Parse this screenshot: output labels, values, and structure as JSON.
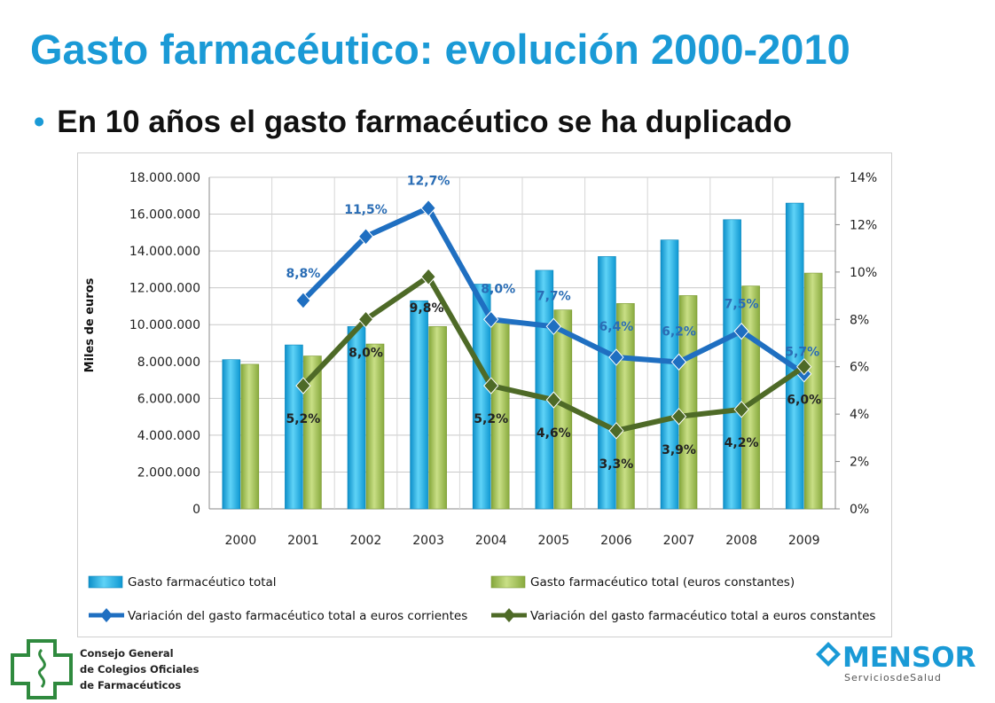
{
  "slide": {
    "title": "Gasto farmacéutico: evolución 2000-2010",
    "bullet": "•",
    "subtitle": "En 10 años el gasto farmacéutico se ha duplicado"
  },
  "logos": {
    "left": {
      "line1": "Consejo General",
      "line2": "de Colegios Oficiales",
      "line3": "de Farmacéuticos"
    },
    "right": {
      "name": "MENSOR",
      "tagline": "ServiciosdeSalud"
    }
  },
  "chart_data": {
    "type": "bar",
    "categories": [
      "2000",
      "2001",
      "2002",
      "2003",
      "2004",
      "2005",
      "2006",
      "2007",
      "2008",
      "2009"
    ],
    "ylabel": "Miles de euros",
    "ylim": [
      0,
      18000000
    ],
    "y_ticks": [
      "0",
      "2.000.000",
      "4.000.000",
      "6.000.000",
      "8.000.000",
      "10.000.000",
      "12.000.000",
      "14.000.000",
      "16.000.000",
      "18.000.000"
    ],
    "y2lim": [
      0,
      14
    ],
    "y2_ticks": [
      "0%",
      "2%",
      "4%",
      "6%",
      "8%",
      "10%",
      "12%",
      "14%"
    ],
    "grid": true,
    "legend_position": "bottom",
    "series": [
      {
        "name": "Gasto farmacéutico total",
        "kind": "bar",
        "color": "#1ab2e8",
        "values": [
          8100000,
          8900000,
          9900000,
          11300000,
          12200000,
          12950000,
          13700000,
          14600000,
          15700000,
          16600000
        ]
      },
      {
        "name": "Gasto farmacéutico total (euros constantes)",
        "kind": "bar",
        "color": "#9dbd4a",
        "values": [
          7850000,
          8300000,
          8950000,
          9900000,
          10200000,
          10800000,
          11150000,
          11580000,
          12100000,
          12800000
        ]
      },
      {
        "name": "Variación del gasto farmacéutico total a euros corrientes",
        "kind": "line",
        "color": "#1f6fc1",
        "values": [
          null,
          8.8,
          11.5,
          12.7,
          8.0,
          7.7,
          6.4,
          6.2,
          7.5,
          5.7
        ],
        "labels": [
          null,
          "8,8%",
          "11,5%",
          "12,7%",
          "8,0%",
          "7,7%",
          "6,4%",
          "6,2%",
          "7,5%",
          "5,7%"
        ]
      },
      {
        "name": "Variación del gasto farmacéutico total a euros constantes",
        "kind": "line",
        "color": "#4e6a27",
        "values": [
          null,
          5.2,
          8.0,
          9.8,
          5.2,
          4.6,
          3.3,
          3.9,
          4.2,
          6.0
        ],
        "labels": [
          null,
          "5,2%",
          "8,0%",
          "9,8%",
          "5,2%",
          "4,6%",
          "3,3%",
          "3,9%",
          "4,2%",
          "6,0%"
        ]
      }
    ]
  }
}
